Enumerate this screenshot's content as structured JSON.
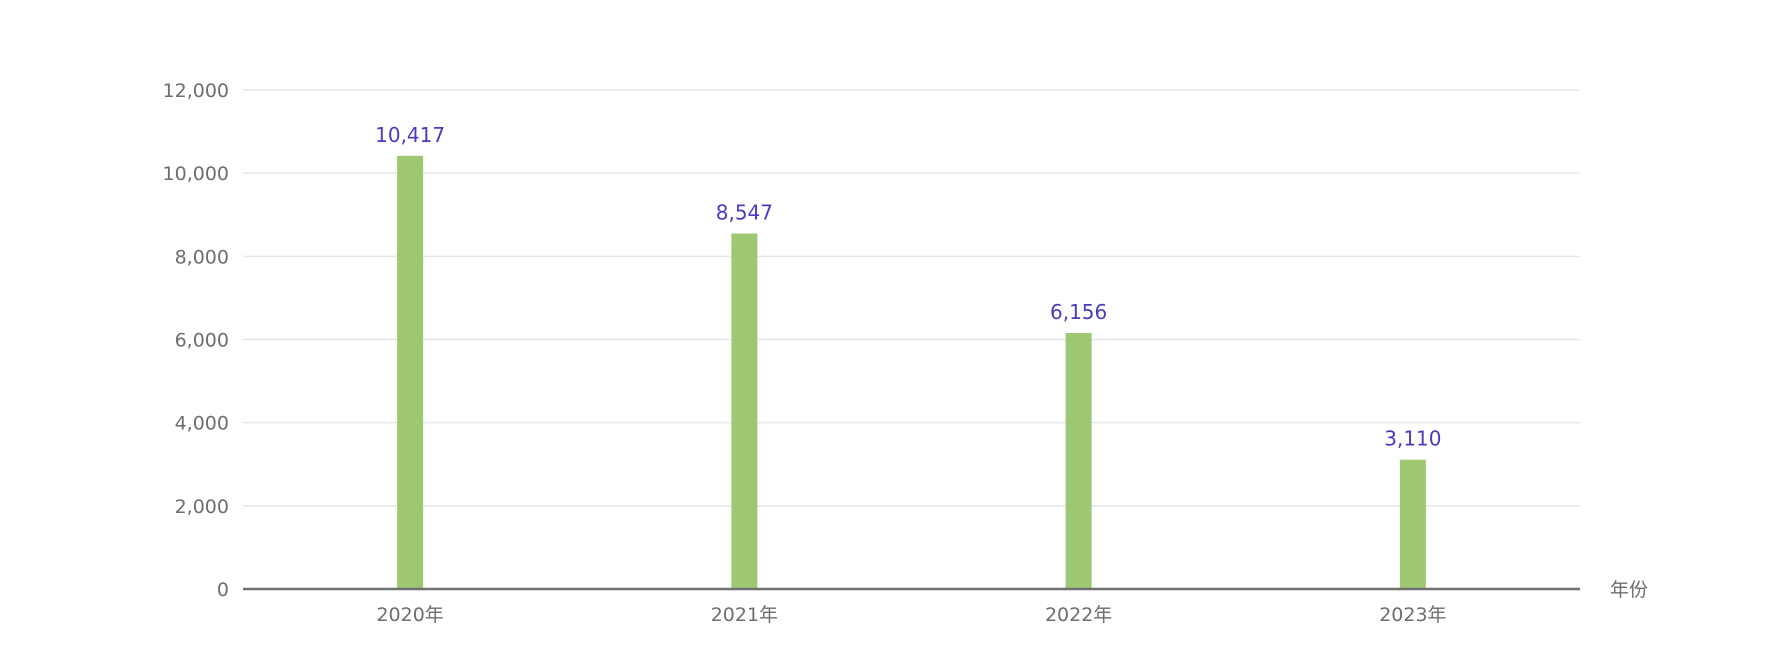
{
  "chart_data": {
    "type": "bar",
    "categories": [
      "2020年",
      "2021年",
      "2022年",
      "2023年"
    ],
    "values": [
      10417,
      8547,
      6156,
      3110
    ],
    "value_labels": [
      "10,417",
      "8,547",
      "6,156",
      "3,110"
    ],
    "xlabel": "年份",
    "ylabel": "",
    "ylim": [
      0,
      12000
    ],
    "yticks": [
      0,
      2000,
      4000,
      6000,
      8000,
      10000,
      12000
    ],
    "ytick_labels": [
      "0",
      "2,000",
      "4,000",
      "6,000",
      "8,000",
      "10,000",
      "12,000"
    ],
    "grid": true,
    "legend": "none"
  },
  "colors": {
    "bar": "#9ec772",
    "data_label": "#4a3dbb",
    "grid": "#e3e6ea",
    "axis": "#707070",
    "tick_text": "#6e6e6e"
  }
}
